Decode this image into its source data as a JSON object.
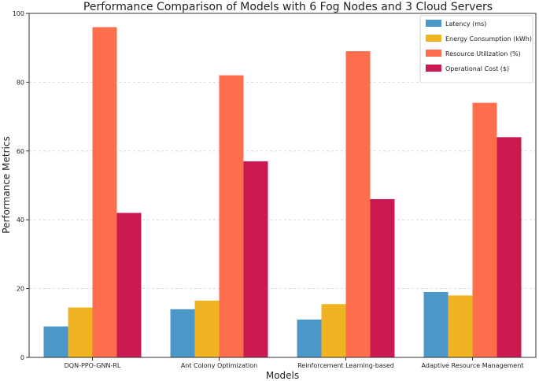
{
  "chart_data": {
    "type": "bar",
    "title": "Performance Comparison of Models with 6 Fog Nodes and 3 Cloud Servers",
    "xlabel": "Models",
    "ylabel": "Performance Metrics",
    "ylim": [
      0,
      100
    ],
    "yticks": [
      0,
      20,
      40,
      60,
      80,
      100
    ],
    "ytick_labels": [
      "0",
      "20",
      "40",
      "60",
      "80",
      "100"
    ],
    "grid": true,
    "legend_position": "top-right",
    "categories": [
      "DQN-PPO-GNN-RL",
      "Ant Colony Optimization",
      "Reinforcement Learning-based",
      "Adaptive Resource Management"
    ],
    "series": [
      {
        "name": "Latency (ms)",
        "color": "#4b98c8",
        "values": [
          9,
          14,
          11,
          19
        ]
      },
      {
        "name": "Energy Consumption (kWh)",
        "color": "#f0b323",
        "values": [
          14.5,
          16.5,
          15.5,
          18
        ]
      },
      {
        "name": "Resource Utilization (%)",
        "color": "#fc6e4c",
        "values": [
          96,
          82,
          89,
          74
        ]
      },
      {
        "name": "Operational Cost ($)",
        "color": "#cb1a4f",
        "values": [
          42,
          57,
          46,
          64
        ]
      }
    ]
  }
}
